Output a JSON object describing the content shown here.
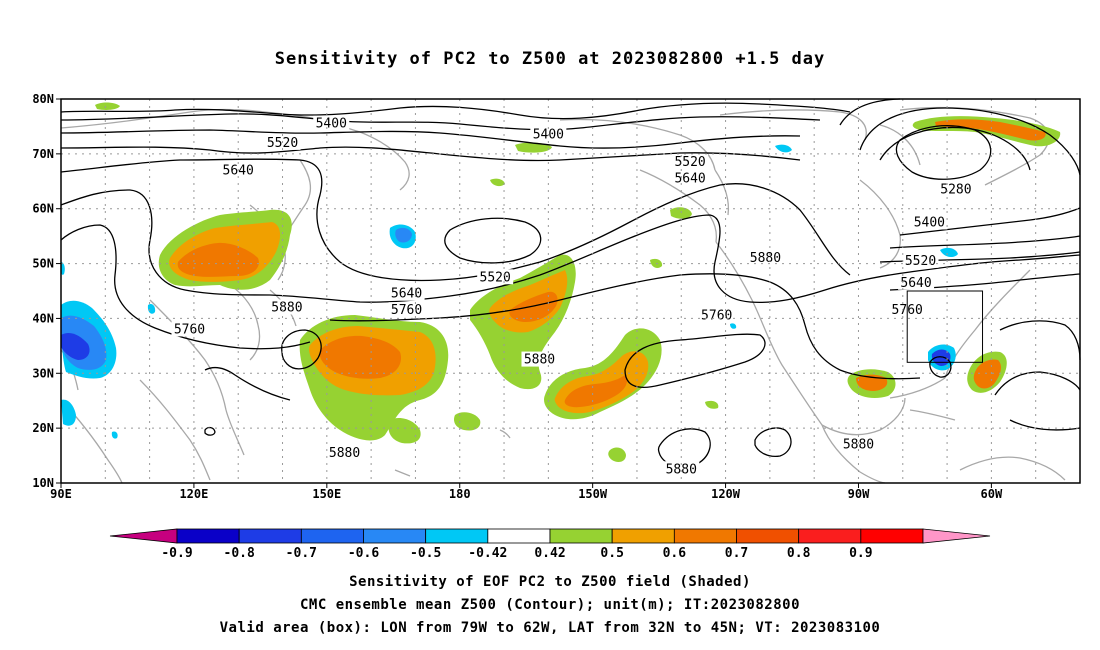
{
  "title": "Sensitivity of PC2 to Z500 at 2023082800 +1.5 day",
  "lat_labels": [
    "80N",
    "70N",
    "60N",
    "50N",
    "40N",
    "30N",
    "20N",
    "10N"
  ],
  "lon_labels": [
    "90E",
    "120E",
    "150E",
    "180",
    "150W",
    "120W",
    "90W",
    "60W"
  ],
  "lon_values_deg_east": [
    90,
    120,
    150,
    180,
    210,
    240,
    270,
    300
  ],
  "lat_values": [
    80,
    70,
    60,
    50,
    40,
    30,
    20,
    10
  ],
  "map_extent": {
    "lon_min": 90,
    "lon_max": 320,
    "lat_min": 10,
    "lat_max": 80
  },
  "valid_area_box": {
    "lon_west": -79,
    "lon_east": -62,
    "lat_south": 32,
    "lat_north": 45
  },
  "contour_labels": [
    {
      "text": "5400",
      "lon": 151,
      "lat": 75.5
    },
    {
      "text": "5400",
      "lon": 200,
      "lat": 73.5
    },
    {
      "text": "5520",
      "lon": 140,
      "lat": 72.0
    },
    {
      "text": "5640",
      "lon": 130,
      "lat": 67.0
    },
    {
      "text": "5520",
      "lon": 232,
      "lat": 68.5
    },
    {
      "text": "5640",
      "lon": 232,
      "lat": 65.5
    },
    {
      "text": "5280",
      "lon": 292,
      "lat": 63.5
    },
    {
      "text": "5400",
      "lon": 286,
      "lat": 57.5
    },
    {
      "text": "5880",
      "lon": 249,
      "lat": 51.0
    },
    {
      "text": "5520",
      "lon": 284,
      "lat": 50.5
    },
    {
      "text": "5520",
      "lon": 188,
      "lat": 47.5
    },
    {
      "text": "5640",
      "lon": 283,
      "lat": 46.5
    },
    {
      "text": "5640",
      "lon": 168,
      "lat": 44.5
    },
    {
      "text": "5880",
      "lon": 141,
      "lat": 42.0
    },
    {
      "text": "5760",
      "lon": 168,
      "lat": 41.5
    },
    {
      "text": "5760",
      "lon": 281,
      "lat": 41.5
    },
    {
      "text": "5760",
      "lon": 238,
      "lat": 40.5
    },
    {
      "text": "5760",
      "lon": 119,
      "lat": 38.0
    },
    {
      "text": "5880",
      "lon": 198,
      "lat": 32.5
    },
    {
      "text": "5880",
      "lon": 270,
      "lat": 17.0
    },
    {
      "text": "5880",
      "lon": 154,
      "lat": 15.5
    },
    {
      "text": "5880",
      "lon": 230,
      "lat": 12.5
    }
  ],
  "colorbar": {
    "labels": [
      "-0.9",
      "-0.8",
      "-0.7",
      "-0.6",
      "-0.5",
      "-0.42",
      "0.42",
      "0.5",
      "0.6",
      "0.7",
      "0.8",
      "0.9"
    ],
    "colors": [
      "#c6007f",
      "#0a00c8",
      "#1e3ce6",
      "#1e64f0",
      "#2888f5",
      "#00c8f5",
      "#ffffff",
      "#96d232",
      "#f0a000",
      "#f07800",
      "#f05000",
      "#fa1e1e",
      "#ff0000",
      "#ff96c8"
    ]
  },
  "shading_colors": {
    "pos_1": "#96d232",
    "pos_2": "#f0a000",
    "pos_3": "#f07800",
    "neg_1": "#00c8f5",
    "neg_2": "#2888f5",
    "neg_3": "#1e3ce6"
  },
  "captions": [
    "Sensitivity of EOF PC2 to Z500 field (Shaded)",
    "CMC ensemble mean Z500 (Contour); unit(m); IT:2023082800",
    "Valid area (box): LON from 79W to 62W, LAT from 32N to 45N; VT: 2023083100"
  ]
}
